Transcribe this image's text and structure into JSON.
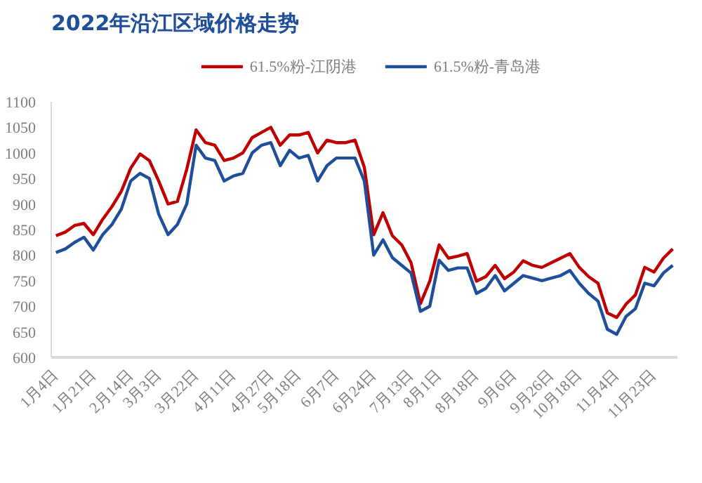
{
  "chart_data": {
    "type": "line",
    "title": "2022年沿江区域价格走势",
    "categories": [
      "1月4日",
      null,
      null,
      null,
      "1月21日",
      null,
      null,
      null,
      "2月14日",
      null,
      null,
      "3月3日",
      null,
      null,
      null,
      "3月22日",
      null,
      null,
      null,
      "4月11日",
      null,
      null,
      null,
      "4月27日",
      null,
      null,
      "5月18日",
      null,
      null,
      null,
      "6月7日",
      null,
      null,
      null,
      "6月24日",
      null,
      null,
      null,
      "7月13日",
      null,
      null,
      "8月1日",
      null,
      null,
      null,
      "8月18日",
      null,
      null,
      null,
      "9月6日",
      null,
      null,
      null,
      "9月26日",
      null,
      null,
      "10月18日",
      null,
      null,
      null,
      "11月4日",
      null,
      null,
      null,
      "11月23日",
      null,
      null
    ],
    "series": [
      {
        "name": "61.5%粉-江阴港",
        "color": "#c00000",
        "values": [
          838,
          845,
          858,
          862,
          840,
          870,
          895,
          925,
          970,
          998,
          985,
          945,
          900,
          905,
          968,
          1045,
          1020,
          1015,
          985,
          990,
          1000,
          1030,
          1040,
          1050,
          1015,
          1035,
          1035,
          1040,
          1000,
          1025,
          1020,
          1020,
          1025,
          972,
          840,
          883,
          838,
          820,
          785,
          705,
          749,
          820,
          794,
          798,
          803,
          749,
          758,
          780,
          754,
          767,
          789,
          780,
          776,
          785,
          794,
          803,
          776,
          758,
          745,
          687,
          678,
          704,
          722,
          776,
          767,
          794,
          812
        ]
      },
      {
        "name": "61.5%粉-青岛港",
        "color": "#1f4e9a",
        "values": [
          805,
          812,
          825,
          835,
          810,
          840,
          860,
          890,
          945,
          960,
          950,
          880,
          840,
          860,
          900,
          1015,
          990,
          985,
          945,
          955,
          960,
          1000,
          1015,
          1020,
          975,
          1005,
          990,
          995,
          945,
          975,
          990,
          990,
          990,
          945,
          800,
          830,
          795,
          780,
          765,
          690,
          700,
          790,
          770,
          775,
          775,
          725,
          735,
          760,
          730,
          745,
          760,
          755,
          750,
          755,
          760,
          770,
          745,
          725,
          710,
          655,
          645,
          680,
          695,
          745,
          740,
          765,
          780
        ]
      }
    ],
    "ylim": [
      600,
      1100
    ],
    "yticks": [
      600,
      650,
      700,
      750,
      800,
      850,
      900,
      950,
      1000,
      1050,
      1100
    ],
    "grid": false,
    "legend": "top",
    "marker": "none",
    "line_style": "solid"
  }
}
